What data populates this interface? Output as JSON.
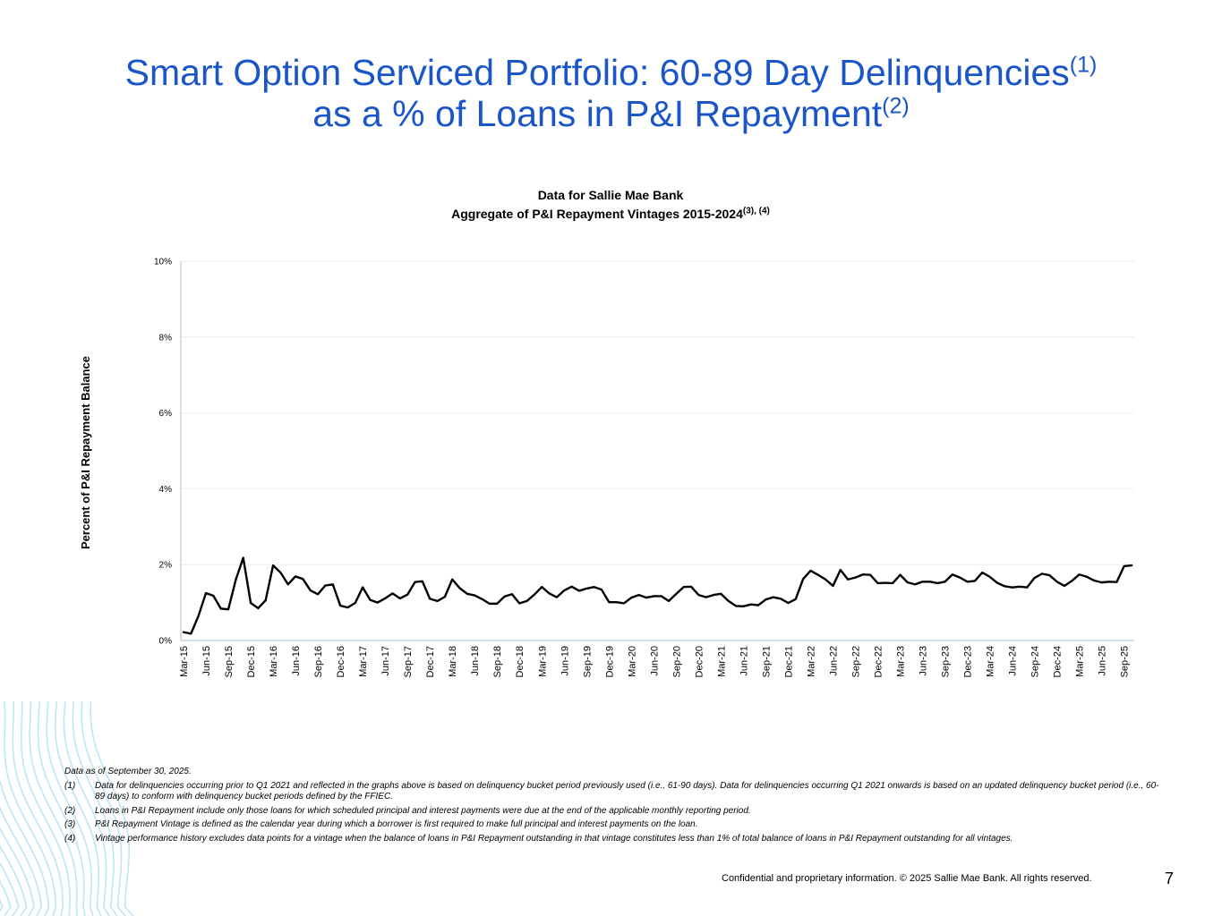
{
  "title_line1": "Smart Option Serviced Portfolio: 60-89 Day Delinquencies",
  "title_line1_sup": "(1)",
  "title_line2": "as a % of Loans in P&I Repayment",
  "title_line2_sup": "(2)",
  "chart_data": {
    "type": "line",
    "title": "Data for Sallie Mae Bank",
    "subtitle": "Aggregate of P&I Repayment Vintages 2015-2024",
    "subtitle_sup": "(3), (4)",
    "xlabel": "",
    "ylabel": "Percent of P&I Repayment  Balance",
    "ylim": [
      0,
      10
    ],
    "y_ticks": [
      "0%",
      "2%",
      "4%",
      "6%",
      "8%",
      "10%"
    ],
    "x_tick_labels": [
      "Mar-15",
      "Jun-15",
      "Sep-15",
      "Dec-15",
      "Mar-16",
      "Jun-16",
      "Sep-16",
      "Dec-16",
      "Mar-17",
      "Jun-17",
      "Sep-17",
      "Dec-17",
      "Mar-18",
      "Jun-18",
      "Sep-18",
      "Dec-18",
      "Mar-19",
      "Jun-19",
      "Sep-19",
      "Dec-19",
      "Mar-20",
      "Jun-20",
      "Sep-20",
      "Dec-20",
      "Mar-21",
      "Jun-21",
      "Sep-21",
      "Dec-21",
      "Mar-22",
      "Jun-22",
      "Sep-22",
      "Dec-22",
      "Mar-23",
      "Jun-23",
      "Sep-23",
      "Dec-23",
      "Mar-24",
      "Jun-24",
      "Sep-24",
      "Dec-24",
      "Mar-25",
      "Jun-25",
      "Sep-25"
    ],
    "series": [
      {
        "name": "60-89 Day Delinquencies",
        "color": "#000000",
        "start_month": "Mar-15",
        "values": [
          0.22,
          0.18,
          0.65,
          1.25,
          1.18,
          0.84,
          0.82,
          1.6,
          2.18,
          0.99,
          0.85,
          1.06,
          1.98,
          1.79,
          1.48,
          1.69,
          1.62,
          1.32,
          1.22,
          1.45,
          1.48,
          0.92,
          0.87,
          0.99,
          1.4,
          1.07,
          1.0,
          1.11,
          1.24,
          1.11,
          1.21,
          1.54,
          1.56,
          1.1,
          1.04,
          1.15,
          1.61,
          1.38,
          1.23,
          1.19,
          1.09,
          0.97,
          0.97,
          1.16,
          1.22,
          0.98,
          1.04,
          1.21,
          1.41,
          1.24,
          1.14,
          1.32,
          1.42,
          1.31,
          1.37,
          1.41,
          1.34,
          1.01,
          1.01,
          0.98,
          1.13,
          1.2,
          1.13,
          1.17,
          1.17,
          1.04,
          1.23,
          1.41,
          1.42,
          1.2,
          1.14,
          1.2,
          1.23,
          1.04,
          0.91,
          0.9,
          0.95,
          0.93,
          1.08,
          1.14,
          1.1,
          0.99,
          1.09,
          1.62,
          1.84,
          1.73,
          1.61,
          1.44,
          1.86,
          1.61,
          1.66,
          1.74,
          1.73,
          1.51,
          1.52,
          1.51,
          1.73,
          1.53,
          1.48,
          1.55,
          1.55,
          1.51,
          1.55,
          1.74,
          1.66,
          1.55,
          1.57,
          1.79,
          1.68,
          1.52,
          1.43,
          1.4,
          1.42,
          1.4,
          1.65,
          1.76,
          1.72,
          1.55,
          1.44,
          1.57,
          1.74,
          1.68,
          1.58,
          1.53,
          1.55,
          1.54,
          1.96,
          1.98
        ]
      }
    ],
    "grid": true,
    "legend": "none"
  },
  "footnotes": {
    "data_as_of": "Data as of  September 30, 2025.",
    "items": [
      {
        "marker": "(1)",
        "text": "Data for delinquencies occurring prior to Q1 2021 and reflected in the graphs above is based on delinquency bucket period previously used (i.e., 61-90 days).  Data for delinquencies occurring Q1 2021 onwards is based on an updated delinquency bucket period (i.e., 60-89 days) to conform with delinquency bucket periods defined by the FFIEC."
      },
      {
        "marker": "(2)",
        "text": "Loans in P&I Repayment include only those loans for which scheduled principal and interest payments were due at the end of the applicable monthly reporting period."
      },
      {
        "marker": "(3)",
        "text": "P&I Repayment Vintage is defined as the calendar year during which a borrower is first required to make full principal and interest payments on the loan."
      },
      {
        "marker": "(4)",
        "text": "Vintage performance history excludes data points for a vintage when the balance of loans in P&I Repayment outstanding in that vintage constitutes less than 1% of total balance of loans in P&I Repayment outstanding for all vintages."
      }
    ]
  },
  "footer": {
    "confidential": "Confidential and proprietary information. © 2025 Sallie Mae Bank. All rights reserved.",
    "page_number": "7"
  },
  "colors": {
    "title": "#1a56c9",
    "decor_waves": "#a9dcf0",
    "gridline": "#eeeeee",
    "axis": "#c9d6e3"
  },
  "decor_icon": "wave-lines-decoration"
}
